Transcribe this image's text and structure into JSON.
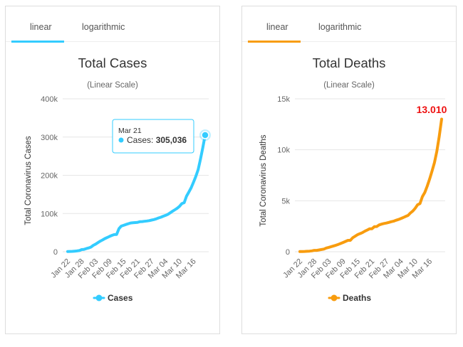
{
  "tabs": {
    "linear_label": "linear",
    "log_label": "logarithmic",
    "active": "linear"
  },
  "colors": {
    "cases": "#33ccff",
    "deaths": "#f89c0e",
    "deaths_label": "#ee1111",
    "grid": "#e6e6e6",
    "axis_text": "#666666"
  },
  "chart_data": [
    {
      "type": "area",
      "title": "Total Cases",
      "subtitle": "(Linear Scale)",
      "ylabel": "Total Coronavirus Cases",
      "ylim": [
        0,
        400000
      ],
      "yticks": [
        0,
        100000,
        200000,
        300000,
        400000
      ],
      "ytick_labels": [
        "0",
        "100k",
        "200k",
        "300k",
        "400k"
      ],
      "xtick_labels": [
        "Jan 22",
        "Jan 28",
        "Feb 03",
        "Feb 09",
        "Feb 15",
        "Feb 21",
        "Feb 27",
        "Mar 04",
        "Mar 10",
        "Mar 16"
      ],
      "legend": "bottom-center",
      "grid": true,
      "series": [
        {
          "name": "Cases",
          "color": "#33ccff",
          "values": [
            555,
            654,
            941,
            1434,
            2118,
            2927,
            5578,
            6166,
            8234,
            9927,
            12038,
            16787,
            19881,
            23892,
            27635,
            30817,
            34391,
            37120,
            40150,
            42762,
            44802,
            45221,
            60368,
            66885,
            69030,
            71224,
            73258,
            75136,
            75639,
            76197,
            76819,
            78572,
            78958,
            79561,
            80406,
            81388,
            82746,
            84112,
            86011,
            88369,
            90306,
            92840,
            95120,
            97886,
            101801,
            105847,
            109821,
            113590,
            118620,
            125875,
            128352,
            145205,
            156101,
            167454,
            181574,
            197102,
            214821,
            242570,
            272208,
            305036
          ]
        }
      ],
      "tooltip": {
        "date": "Mar 21",
        "label": "Cases",
        "value": "305,036"
      }
    },
    {
      "type": "area",
      "title": "Total Deaths",
      "subtitle": "(Linear Scale)",
      "ylabel": "Total Coronavirus Deaths",
      "ylim": [
        0,
        15000
      ],
      "yticks": [
        0,
        5000,
        10000,
        15000
      ],
      "ytick_labels": [
        "0",
        "5k",
        "10k",
        "15k"
      ],
      "xtick_labels": [
        "Jan 22",
        "Jan 28",
        "Feb 03",
        "Feb 09",
        "Feb 15",
        "Feb 21",
        "Feb 27",
        "Mar 04",
        "Mar 10",
        "Mar 16"
      ],
      "legend": "bottom-center",
      "grid": true,
      "series": [
        {
          "name": "Deaths",
          "color": "#f89c0e",
          "values": [
            17,
            18,
            26,
            42,
            56,
            82,
            131,
            133,
            171,
            213,
            259,
            362,
            426,
            492,
            564,
            634,
            719,
            806,
            906,
            1013,
            1113,
            1118,
            1371,
            1523,
            1666,
            1770,
            1868,
            2007,
            2122,
            2247,
            2251,
            2458,
            2469,
            2629,
            2708,
            2770,
            2814,
            2872,
            2941,
            2996,
            3085,
            3160,
            3254,
            3348,
            3460,
            3558,
            3802,
            3988,
            4262,
            4615,
            4720,
            5404,
            5819,
            6440,
            7126,
            7905,
            8733,
            9867,
            11299,
            13010
          ]
        }
      ],
      "end_label": "13.010"
    }
  ]
}
